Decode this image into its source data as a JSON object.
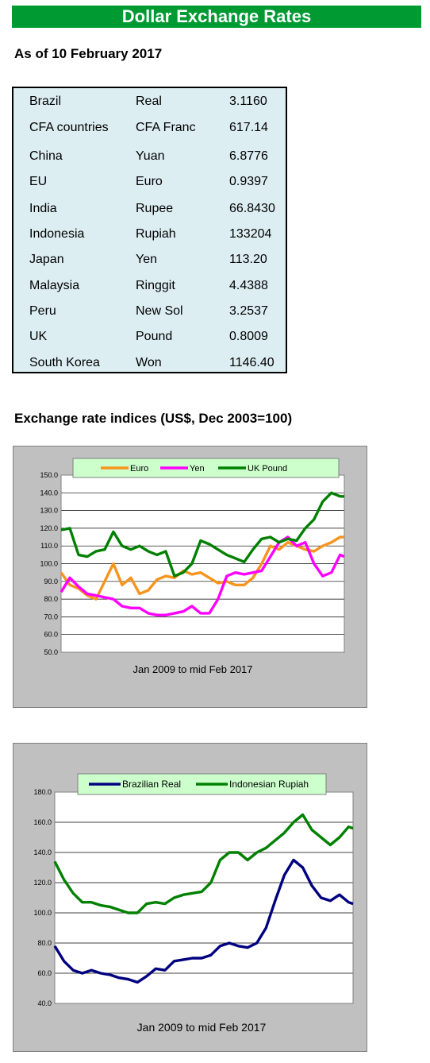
{
  "header": {
    "title": "Dollar Exchange Rates",
    "as_of": "As of 10 February 2017"
  },
  "rates": [
    {
      "country": "Brazil",
      "currency": "Real",
      "rate": "3.1160"
    },
    {
      "country": "CFA countries",
      "currency": "CFA Franc",
      "rate": "617.14"
    },
    {
      "country": "China",
      "currency": "Yuan",
      "rate": "6.8776"
    },
    {
      "country": "EU",
      "currency": "Euro",
      "rate": "0.9397"
    },
    {
      "country": "India",
      "currency": "Rupee",
      "rate": "66.8430"
    },
    {
      "country": "Indonesia",
      "currency": "Rupiah",
      "rate": "133204"
    },
    {
      "country": "Japan",
      "currency": "Yen",
      "rate": "113.20"
    },
    {
      "country": "Malaysia",
      "currency": "Ringgit",
      "rate": "4.4388"
    },
    {
      "country": "Peru",
      "currency": "New Sol",
      "rate": "3.2537"
    },
    {
      "country": "UK",
      "currency": "Pound",
      "rate": "0.8009"
    },
    {
      "country": "South Korea",
      "currency": "Won",
      "rate": "1146.40"
    }
  ],
  "section_title": "Exchange rate indices (US$, Dec 2003=100)",
  "chart_data": [
    {
      "type": "line",
      "title": "",
      "xlabel": "Jan 2009 to mid  Feb 2017",
      "ylabel": "",
      "ylim": [
        50,
        150
      ],
      "yticks": [
        "150.0",
        "140.0",
        "130.0",
        "120.0",
        "110.0",
        "100.0",
        "90.0",
        "80.0",
        "70.0",
        "60.0",
        "50.0"
      ],
      "grid": true,
      "legend": "top",
      "x": [
        2009.0,
        2009.25,
        2009.5,
        2009.75,
        2010.0,
        2010.25,
        2010.5,
        2010.75,
        2011.0,
        2011.25,
        2011.5,
        2011.75,
        2012.0,
        2012.25,
        2012.5,
        2012.75,
        2013.0,
        2013.25,
        2013.5,
        2013.75,
        2014.0,
        2014.25,
        2014.5,
        2014.75,
        2015.0,
        2015.25,
        2015.5,
        2015.75,
        2016.0,
        2016.25,
        2016.5,
        2016.75,
        2017.0,
        2017.12
      ],
      "series": [
        {
          "name": "Euro",
          "color": "#f7941d",
          "values": [
            95,
            88,
            86,
            82,
            80,
            90,
            100,
            88,
            92,
            83,
            85,
            91,
            93,
            92,
            96,
            94,
            95,
            92,
            89,
            90,
            88,
            88,
            92,
            100,
            110,
            108,
            112,
            110,
            108,
            107,
            110,
            112,
            115,
            115
          ]
        },
        {
          "name": "Yen",
          "color": "#ff00ff",
          "values": [
            84,
            92,
            87,
            83,
            82,
            81,
            80,
            76,
            75,
            75,
            72,
            71,
            71,
            72,
            73,
            76,
            72,
            72,
            80,
            93,
            95,
            94,
            95,
            96,
            104,
            112,
            115,
            110,
            112,
            100,
            93,
            95,
            105,
            104
          ]
        },
        {
          "name": "UK Pound",
          "color": "#008000",
          "values": [
            119,
            120,
            105,
            104,
            107,
            108,
            118,
            110,
            108,
            110,
            107,
            105,
            107,
            93,
            95,
            100,
            113,
            111,
            108,
            105,
            103,
            101,
            108,
            114,
            115,
            112,
            114,
            113,
            120,
            125,
            135,
            140,
            138,
            138
          ]
        }
      ]
    },
    {
      "type": "line",
      "title": "",
      "xlabel": "Jan 2009 to mid Feb 2017",
      "ylabel": "",
      "ylim": [
        40,
        180
      ],
      "yticks": [
        "180.0",
        "160.0",
        "140.0",
        "120.0",
        "100.0",
        "80.0",
        "60.0",
        "40.0"
      ],
      "grid": true,
      "legend": "top",
      "x": [
        2009.0,
        2009.25,
        2009.5,
        2009.75,
        2010.0,
        2010.25,
        2010.5,
        2010.75,
        2011.0,
        2011.25,
        2011.5,
        2011.75,
        2012.0,
        2012.25,
        2012.5,
        2012.75,
        2013.0,
        2013.25,
        2013.5,
        2013.75,
        2014.0,
        2014.25,
        2014.5,
        2014.75,
        2015.0,
        2015.25,
        2015.5,
        2015.75,
        2016.0,
        2016.25,
        2016.5,
        2016.75,
        2017.0,
        2017.12
      ],
      "series": [
        {
          "name": "Brazilian Real",
          "color": "#000080",
          "values": [
            78,
            68,
            62,
            60,
            62,
            60,
            59,
            57,
            56,
            54,
            58,
            63,
            62,
            68,
            69,
            70,
            70,
            72,
            78,
            80,
            78,
            77,
            80,
            90,
            108,
            125,
            135,
            130,
            118,
            110,
            108,
            112,
            107,
            106
          ]
        },
        {
          "name": "Indonesian Rupiah",
          "color": "#008000",
          "values": [
            134,
            122,
            113,
            107,
            107,
            105,
            104,
            102,
            100,
            100,
            106,
            107,
            106,
            110,
            112,
            113,
            114,
            120,
            135,
            140,
            140,
            135,
            140,
            143,
            148,
            153,
            160,
            165,
            155,
            150,
            145,
            150,
            157,
            156
          ]
        }
      ]
    }
  ]
}
